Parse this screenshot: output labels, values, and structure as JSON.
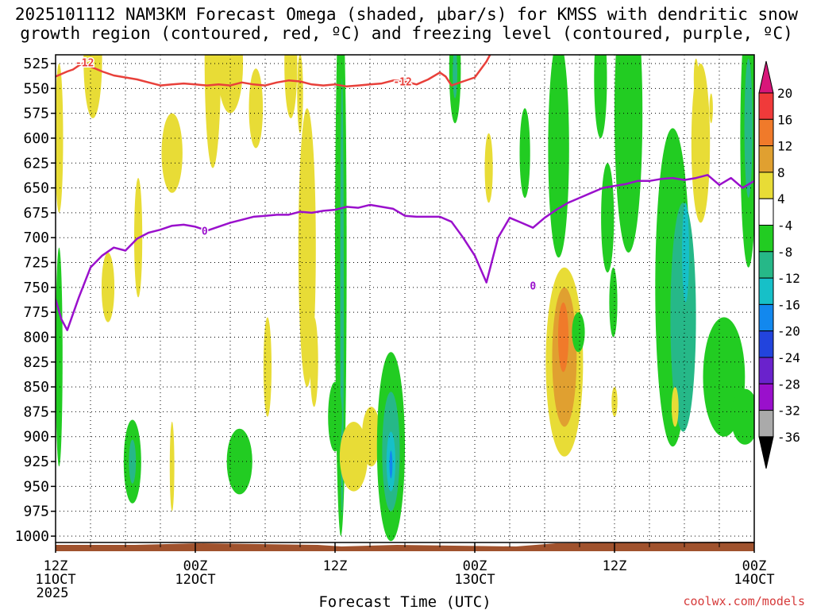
{
  "header": {
    "line1": "2025101112 NAM3KM Forecast Omega (shaded, μbar/s) for KMSS with dendritic snow",
    "line2": "growth region (contoured, red, ºC) and freezing level (contoured, purple, ºC)"
  },
  "credit": "coolwx.com/models",
  "chart_data": {
    "type": "heatmap",
    "title": "2025101112 NAM3KM Forecast Omega (shaded, μbar/s) for KMSS with dendritic snow growth region (contoured, red, ºC) and freezing level (contoured, purple, ºC)",
    "xlabel": "Forecast Time (UTC)",
    "ylabel": "",
    "xlim_hours": [
      0,
      60
    ],
    "ylim_hpa": [
      1000,
      512
    ],
    "y_ticks": [
      525,
      550,
      575,
      600,
      625,
      650,
      675,
      700,
      725,
      750,
      775,
      800,
      825,
      850,
      875,
      900,
      925,
      950,
      975,
      1000
    ],
    "x_ticks": [
      {
        "h": 0,
        "l1": "12Z",
        "l2": "11OCT",
        "l3": "2025"
      },
      {
        "h": 12,
        "l1": "00Z",
        "l2": "12OCT",
        "l3": ""
      },
      {
        "h": 24,
        "l1": "12Z",
        "l2": "",
        "l3": ""
      },
      {
        "h": 36,
        "l1": "00Z",
        "l2": "13OCT",
        "l3": ""
      },
      {
        "h": 48,
        "l1": "12Z",
        "l2": "",
        "l3": ""
      },
      {
        "h": 60,
        "l1": "00Z",
        "l2": "14OCT",
        "l3": ""
      }
    ],
    "colorbar": {
      "labels": [
        "20",
        "16",
        "12",
        "8",
        "4",
        "-4",
        "-8",
        "-12",
        "-16",
        "-20",
        "-24",
        "-28",
        "-32",
        "-36"
      ],
      "colors": [
        "#d8167a",
        "#f03a3a",
        "#f07a2a",
        "#e0a030",
        "#e8dc36",
        "#ffffff",
        "#22cc22",
        "#26b888",
        "#16c0c8",
        "#1288ee",
        "#2244dd",
        "#6a22cc",
        "#9a10cc",
        "#aaaaaa"
      ],
      "under_color": "#000000"
    },
    "series": [
      {
        "name": "dendritic growth region -12 ºC",
        "color": "#e8403a",
        "contour_label": "-12",
        "x": [
          0,
          1,
          1.5,
          2,
          2.5,
          3,
          4,
          5,
          6,
          7,
          8,
          9,
          10,
          11,
          12,
          13,
          14,
          15,
          16,
          17,
          18,
          19,
          20,
          21,
          22,
          23,
          24,
          25,
          26,
          27,
          28,
          29,
          30,
          31,
          32,
          33,
          33.5,
          34,
          35,
          36,
          37,
          37.5
        ],
        "y": [
          538,
          533,
          531,
          527,
          524,
          528,
          533,
          537,
          539,
          541,
          544,
          547,
          546,
          545,
          546,
          547,
          546,
          547,
          544,
          546,
          547,
          544,
          542,
          543,
          546,
          547,
          546,
          548,
          547,
          546,
          545,
          542,
          543,
          546,
          541,
          534,
          538,
          547,
          543,
          539,
          523,
          512
        ]
      },
      {
        "name": "freezing level 0 ºC",
        "color": "#9a10cc",
        "contour_label": "0",
        "x": [
          0,
          0.5,
          1,
          2,
          3,
          4,
          5,
          6,
          7,
          8,
          9,
          10,
          11,
          12,
          13,
          14,
          15,
          16,
          17,
          18,
          19,
          20,
          21,
          22,
          23,
          24,
          25,
          26,
          27,
          28,
          29,
          30,
          31,
          32,
          33,
          34,
          35,
          36,
          37,
          38,
          39,
          40,
          41,
          42,
          43,
          44,
          45,
          46,
          47,
          48,
          49,
          50,
          51,
          52,
          53,
          54,
          55,
          56,
          57,
          58,
          59,
          60
        ],
        "y": [
          762,
          782,
          793,
          760,
          730,
          718,
          710,
          713,
          701,
          695,
          692,
          688,
          687,
          689,
          693,
          689,
          685,
          682,
          679,
          678,
          677,
          677,
          674,
          675,
          673,
          672,
          669,
          670,
          667,
          669,
          671,
          678,
          679,
          679,
          679,
          684,
          700,
          718,
          745,
          700,
          680,
          685,
          690,
          680,
          672,
          665,
          660,
          655,
          650,
          648,
          646,
          643,
          643,
          641,
          640,
          642,
          640,
          637,
          647,
          640,
          650,
          643
        ]
      }
    ],
    "shading": [
      {
        "level": "4 to 8 (ascent weak)",
        "color": "#e8dc36"
      },
      {
        "level": "-4 to -8",
        "color": "#22cc22"
      },
      {
        "level": "-8 to -12",
        "color": "#26b888"
      },
      {
        "level": "-12 to -16",
        "color": "#16c0c8"
      },
      {
        "level": "-16 to -20",
        "color": "#1288ee"
      },
      {
        "level": "8 to 12",
        "color": "#e0a030"
      },
      {
        "level": "12 to 16",
        "color": "#f07a2a"
      }
    ]
  }
}
